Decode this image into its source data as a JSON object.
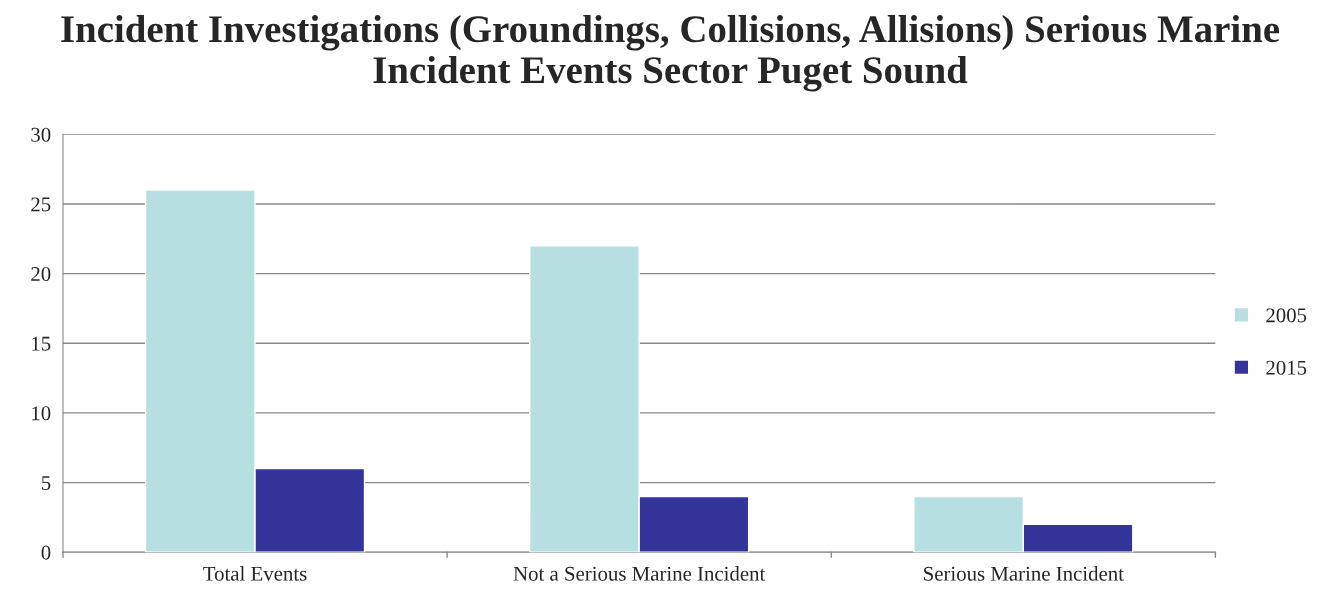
{
  "chart_data": {
    "type": "bar",
    "title": "Incident Investigations (Groundings, Collisions, Allisions) Serious Marine Incident Events Sector Puget Sound",
    "categories": [
      "Total Events",
      "Not a Serious Marine Incident",
      "Serious Marine Incident"
    ],
    "series": [
      {
        "name": "2005",
        "color": "#b7dfe2",
        "values": [
          26,
          22,
          4
        ]
      },
      {
        "name": "2015",
        "color": "#35349a",
        "values": [
          6,
          4,
          2
        ]
      }
    ],
    "ylim": [
      0,
      30
    ],
    "yticks": [
      0,
      5,
      10,
      15,
      20,
      25,
      30
    ],
    "grid": "y",
    "legend": "right"
  }
}
